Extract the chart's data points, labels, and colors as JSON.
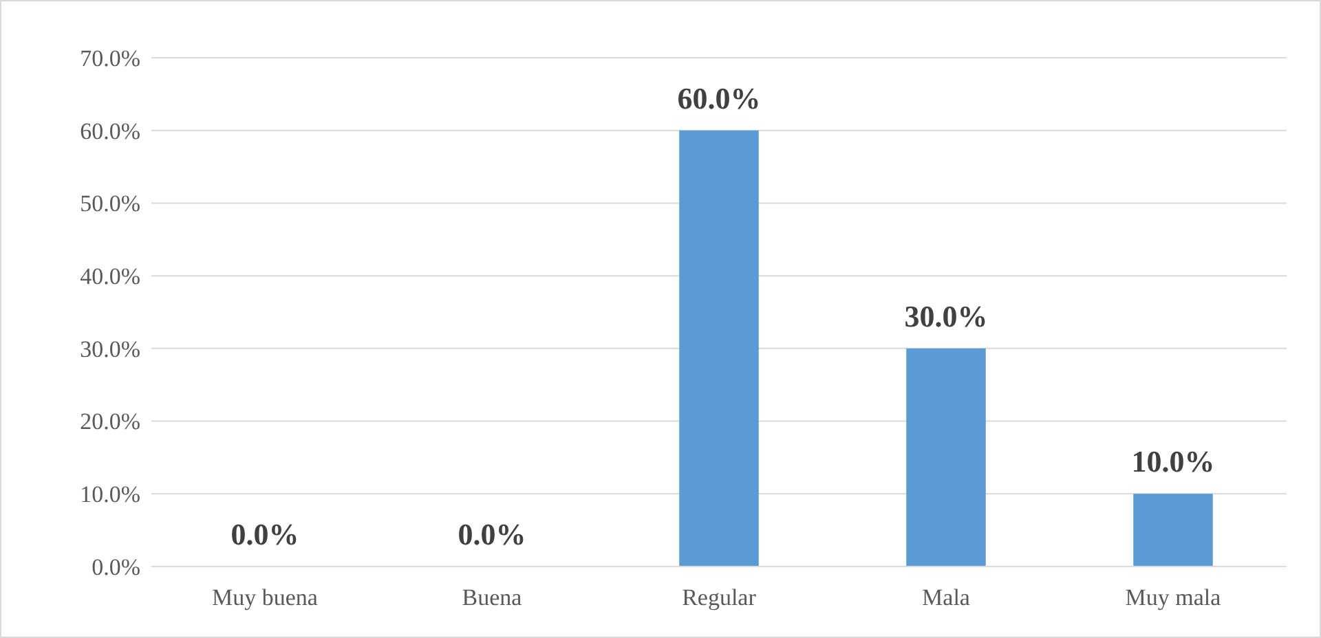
{
  "chart_data": {
    "type": "bar",
    "categories": [
      "Muy buena",
      "Buena",
      "Regular",
      "Mala",
      "Muy mala"
    ],
    "values": [
      0,
      0,
      60,
      30,
      10
    ],
    "value_labels": [
      "0.0%",
      "0.0%",
      "60.0%",
      "30.0%",
      "10.0%"
    ],
    "color": "#5b9bd5",
    "ylim": [
      0,
      70
    ],
    "yticks": [
      {
        "value": 0,
        "label": "0.0%"
      },
      {
        "value": 10,
        "label": "10.0%"
      },
      {
        "value": 20,
        "label": "20.0%"
      },
      {
        "value": 30,
        "label": "30.0%"
      },
      {
        "value": 40,
        "label": "40.0%"
      },
      {
        "value": 50,
        "label": "50.0%"
      },
      {
        "value": 60,
        "label": "60.0%"
      },
      {
        "value": 70,
        "label": "70.0%"
      }
    ],
    "grid": "y"
  }
}
